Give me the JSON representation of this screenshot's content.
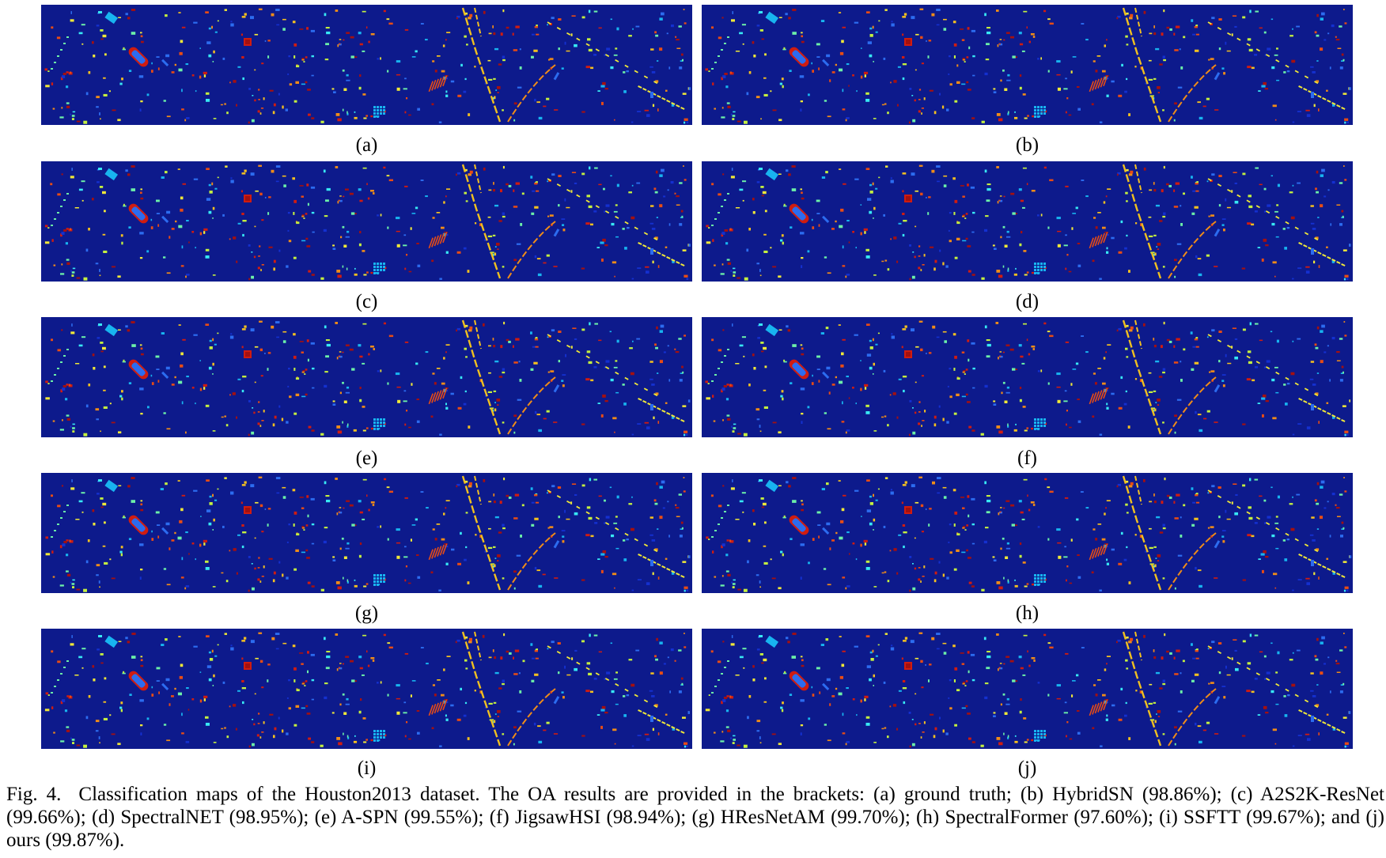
{
  "figure": {
    "number": "Fig. 4.",
    "caption": "Classification maps of the Houston2013 dataset. The OA results are provided in the brackets: (a) ground truth; (b) HybridSN (98.86%); (c) A2S2K-ResNet (99.66%); (d) SpectralNET (98.95%); (e) A-SPN (99.55%); (f) JigsawHSI (98.94%); (g) HResNetAM (99.70%); (h) SpectralFormer (97.60%); (i) SSFTT (99.67%); and (j) ours (99.87%)."
  },
  "panels": [
    {
      "label": "(a)"
    },
    {
      "label": "(b)"
    },
    {
      "label": "(c)"
    },
    {
      "label": "(d)"
    },
    {
      "label": "(e)"
    },
    {
      "label": "(f)"
    },
    {
      "label": "(g)"
    },
    {
      "label": "(h)"
    },
    {
      "label": "(i)"
    },
    {
      "label": "(j)"
    }
  ],
  "colors": {
    "background": "#0d1a8c",
    "class_colors": [
      "#2c6cf0",
      "#18b4f0",
      "#38e8f4",
      "#6cf0a8",
      "#c4f040",
      "#f0e838",
      "#f4c020",
      "#f08c18",
      "#e84c14",
      "#d01c10",
      "#a41010",
      "#1430d0"
    ]
  }
}
